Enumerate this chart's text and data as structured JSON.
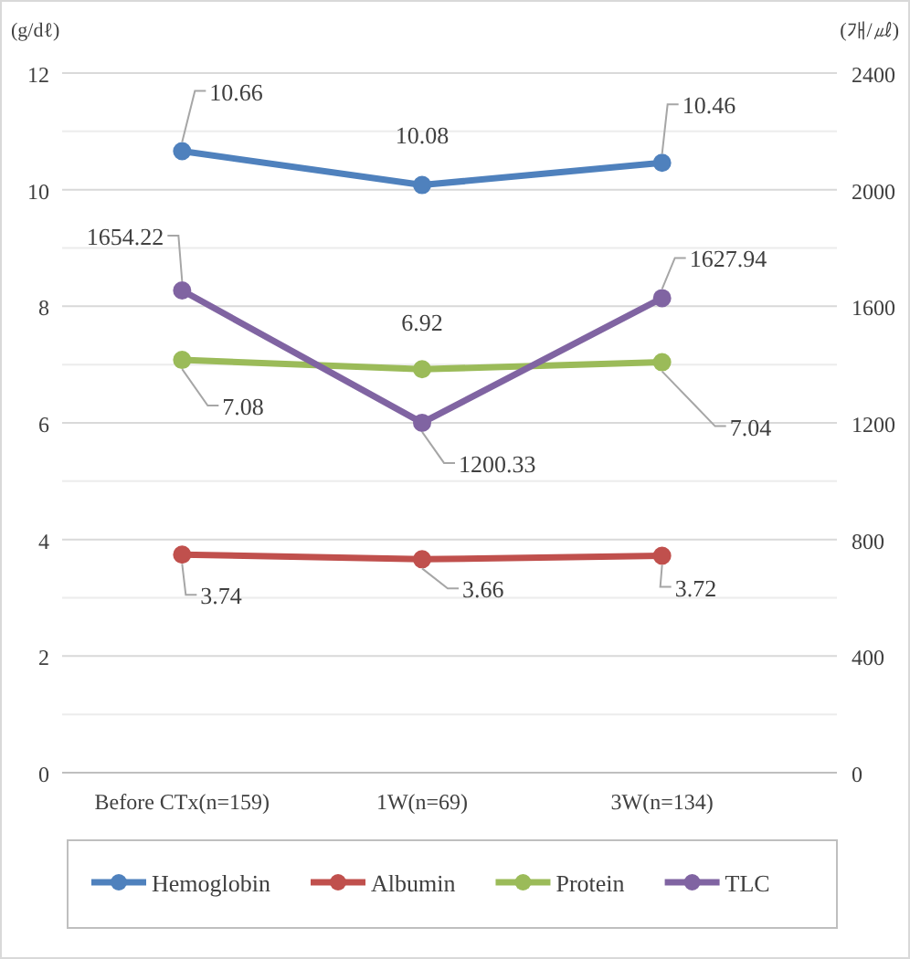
{
  "chart_data": {
    "type": "line",
    "ylabel": "(g/dℓ)",
    "y2label": "(개/㎕)",
    "categories": [
      "Before CTx(n=159)",
      "1W(n=69)",
      "3W(n=134)"
    ],
    "series": [
      {
        "name": "Hemoglobin",
        "color": "#4f81bd",
        "values": [
          10.66,
          10.08,
          10.46
        ]
      },
      {
        "name": "Albumin",
        "color": "#c0504d",
        "values": [
          3.74,
          3.66,
          3.72
        ]
      },
      {
        "name": "Protein",
        "color": "#9bbb59",
        "values": [
          7.08,
          6.92,
          7.04
        ]
      },
      {
        "name": "TLC",
        "color": "#8064a2",
        "values": [
          1654.22,
          1200.33,
          1627.94
        ],
        "axis": "y2"
      }
    ],
    "ylim": [
      0,
      12
    ],
    "yticks": [
      0,
      {
        "value": 1,
        "label": null
      },
      2,
      {
        "value": 3,
        "label": null
      },
      4,
      {
        "value": 5,
        "label": null
      },
      6,
      {
        "value": 7,
        "label": null
      },
      8,
      {
        "value": 9,
        "label": null
      },
      10,
      {
        "value": 11,
        "label": null
      },
      12
    ],
    "y2lim": [
      0,
      2400
    ],
    "y2ticks": [
      0,
      400,
      800,
      1200,
      1600,
      2000,
      2400
    ],
    "grid": "y",
    "legend": "bottom",
    "marker": "circle",
    "line_style": "solid",
    "data_labels": true
  }
}
